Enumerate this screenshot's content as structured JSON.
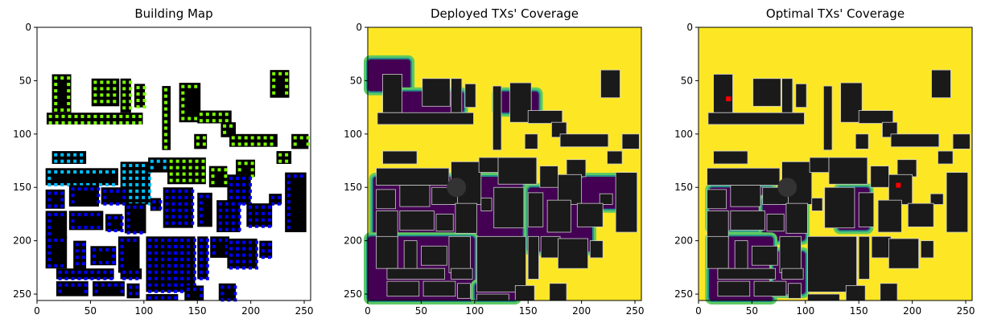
{
  "chart_data": [
    {
      "type": "heatmap",
      "title": "Building Map",
      "xlim": [
        0,
        256
      ],
      "ylim": [
        256,
        0
      ],
      "xticks": [
        0,
        50,
        100,
        150,
        200,
        250
      ],
      "yticks": [
        0,
        50,
        100,
        150,
        200,
        250
      ],
      "colors": {
        "background": "#ffffff",
        "building": "#000000",
        "marker_high": "#7cfc00",
        "marker_mid": "#00bfff",
        "marker_low": "#0000ff"
      }
    },
    {
      "type": "heatmap",
      "title": "Deployed TXs' Coverage",
      "xlim": [
        0,
        256
      ],
      "ylim": [
        256,
        0
      ],
      "xticks": [
        0,
        50,
        100,
        150,
        200,
        250
      ],
      "yticks": [
        0,
        50,
        100,
        150,
        200,
        250
      ],
      "colors": {
        "covered": "#fde725",
        "mid_high": "#5ec962",
        "mid": "#21918c",
        "uncovered": "#440154",
        "building": "#1a1a1a"
      }
    },
    {
      "type": "heatmap",
      "title": "Optimal TXs' Coverage",
      "xlim": [
        0,
        256
      ],
      "ylim": [
        256,
        0
      ],
      "xticks": [
        0,
        50,
        100,
        150,
        200,
        250
      ],
      "yticks": [
        0,
        50,
        100,
        150,
        200,
        250
      ],
      "transmitters": [
        {
          "x": 28,
          "y": 67
        },
        {
          "x": 187,
          "y": 148
        }
      ],
      "colors": {
        "covered": "#fde725",
        "mid_high": "#5ec962",
        "mid": "#21918c",
        "uncovered": "#440154",
        "building": "#1a1a1a",
        "tx": "#ff0000"
      }
    }
  ]
}
